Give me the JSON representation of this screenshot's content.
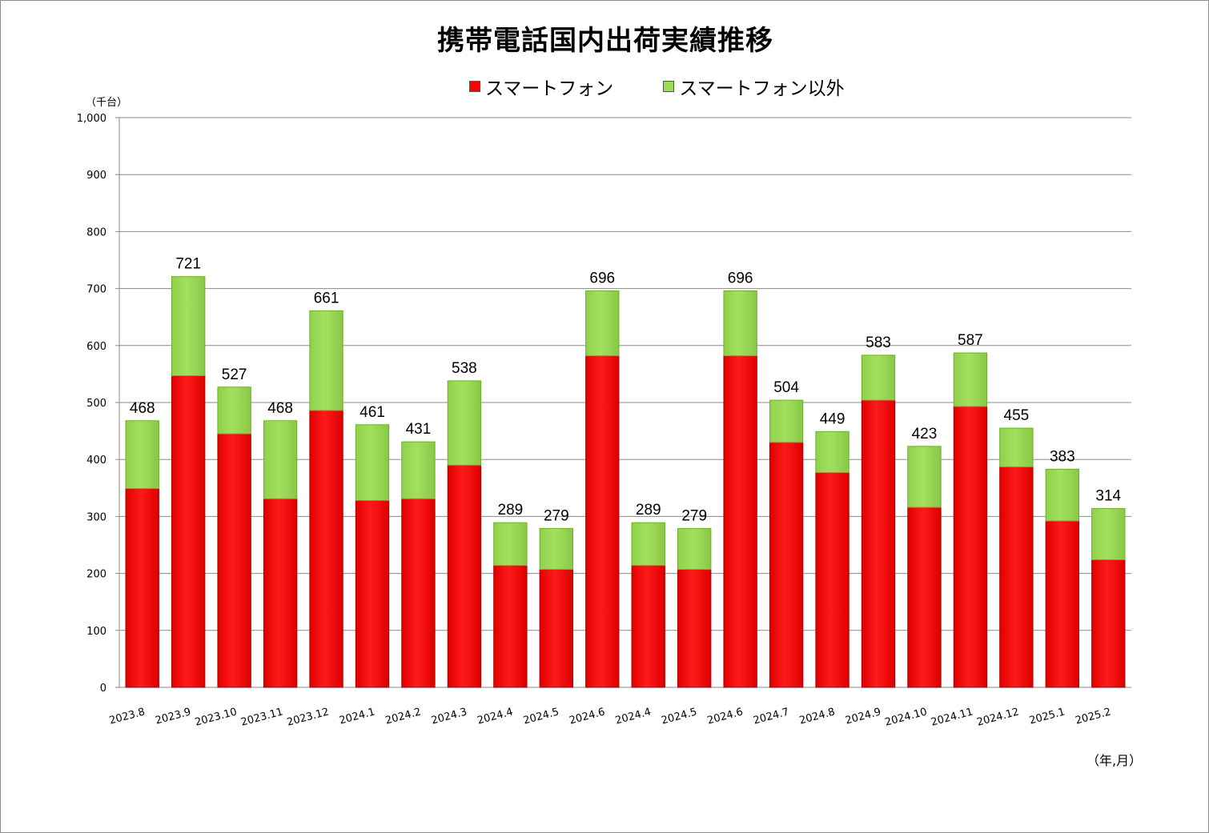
{
  "chart_data": {
    "type": "bar",
    "stacked": true,
    "title": "携帯電話国内出荷実績推移",
    "y_unit": "（千台）",
    "x_unit": "（年,月）",
    "ylim": [
      0,
      1000
    ],
    "y_ticks": [
      "0",
      "100",
      "200",
      "300",
      "400",
      "500",
      "600",
      "700",
      "800",
      "900",
      "1,000"
    ],
    "y_tick_values": [
      0,
      100,
      200,
      300,
      400,
      500,
      600,
      700,
      800,
      900,
      1000
    ],
    "grid": true,
    "legend_position": "top",
    "categories": [
      "2023.8",
      "2023.9",
      "2023.10",
      "2023.11",
      "2023.12",
      "2024.1",
      "2024.2",
      "2024.3",
      "2024.4",
      "2024.5",
      "2024.6",
      "2024.4",
      "2024.5",
      "2024.6",
      "2024.7",
      "2024.8",
      "2024.9",
      "2024.10",
      "2024.11",
      "2024.12",
      "2025.1",
      "2025.2"
    ],
    "series": [
      {
        "name": "スマートフォン",
        "color": "#ff0000",
        "values": [
          349,
          547,
          445,
          331,
          486,
          328,
          331,
          390,
          214,
          207,
          582,
          214,
          207,
          582,
          430,
          377,
          504,
          316,
          493,
          387,
          292,
          224
        ]
      },
      {
        "name": "スマートフォン以外",
        "color": "#99dd55",
        "values": [
          119,
          174,
          82,
          137,
          175,
          133,
          100,
          148,
          75,
          72,
          114,
          75,
          72,
          114,
          74,
          72,
          79,
          107,
          94,
          68,
          91,
          90
        ]
      }
    ],
    "totals": [
      "468",
      "721",
      "527",
      "468",
      "661",
      "461",
      "431",
      "538",
      "289",
      "279",
      "696",
      "289",
      "279",
      "696",
      "504",
      "449",
      "583",
      "423",
      "587",
      "455",
      "383",
      "314"
    ]
  }
}
